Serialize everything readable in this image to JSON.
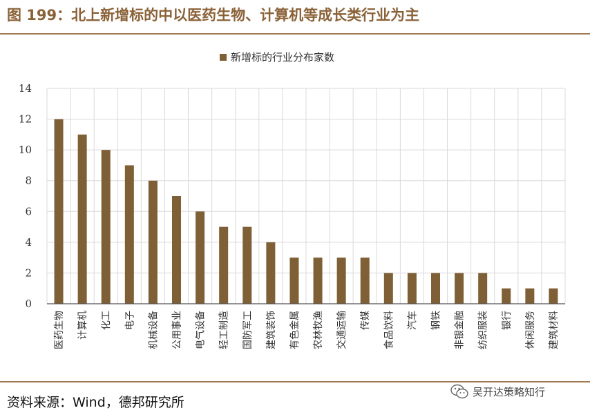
{
  "header": {
    "title": "图 199：北上新增标的中以医药生物、计算机等成长类行业为主"
  },
  "footer": {
    "source": "资料来源：Wind，德邦研究所"
  },
  "watermark": {
    "label": "吴开达策略知行",
    "icon": "wechat-icon"
  },
  "colors": {
    "bar": "#7f5f36",
    "accent": "#a07a50",
    "grid": "#d9d9d9"
  },
  "chart_data": {
    "type": "bar",
    "categories": [
      "医药生物",
      "计算机",
      "化工",
      "电子",
      "机械设备",
      "公用事业",
      "电气设备",
      "轻工制造",
      "国防军工",
      "建筑装饰",
      "有色金属",
      "农林牧渔",
      "交通运输",
      "传媒",
      "食品饮料",
      "汽车",
      "钢铁",
      "非银金融",
      "纺织服装",
      "银行",
      "休闲服务",
      "建筑材料"
    ],
    "series": [
      {
        "name": "新增标的行业分布家数",
        "values": [
          12,
          11,
          10,
          9,
          8,
          7,
          6,
          5,
          5,
          4,
          3,
          3,
          3,
          3,
          2,
          2,
          2,
          2,
          2,
          1,
          1,
          1
        ]
      }
    ],
    "yticks": [
      0,
      2,
      4,
      6,
      8,
      10,
      12,
      14
    ],
    "ylim": [
      0,
      14
    ],
    "grid": true,
    "legend_position": "top-center"
  }
}
